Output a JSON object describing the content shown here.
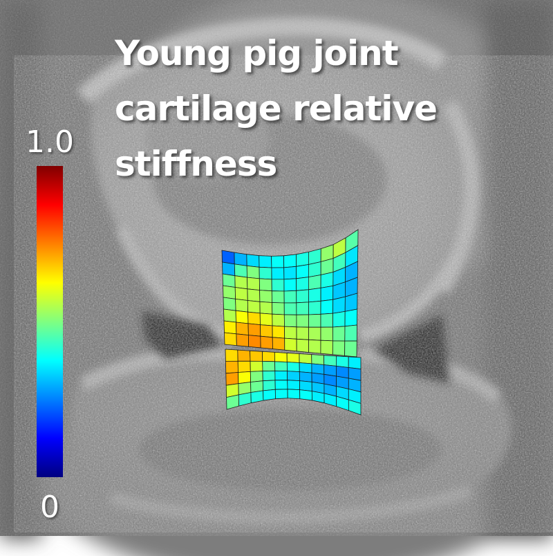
{
  "title_lines": [
    "Young pig joint",
    "cartilage relative",
    "stiffness"
  ],
  "colorbar": {
    "max_label": "1.0",
    "min_label": "0",
    "colors": [
      "#000080",
      "#0000ff",
      "#0080ff",
      "#00ffff",
      "#80ff80",
      "#ffff00",
      "#ff8000",
      "#ff0000",
      "#800000"
    ]
  },
  "upper_mesh_stiffness": [
    [
      0.22,
      0.3,
      0.34,
      0.36,
      0.38,
      0.38,
      0.4,
      0.42,
      0.52,
      0.56,
      0.46
    ],
    [
      0.3,
      0.45,
      0.5,
      0.42,
      0.36,
      0.35,
      0.38,
      0.42,
      0.48,
      0.44,
      0.35
    ],
    [
      0.48,
      0.55,
      0.55,
      0.5,
      0.42,
      0.38,
      0.4,
      0.45,
      0.4,
      0.34,
      0.3
    ],
    [
      0.52,
      0.56,
      0.55,
      0.52,
      0.48,
      0.44,
      0.42,
      0.4,
      0.36,
      0.32,
      0.3
    ],
    [
      0.5,
      0.55,
      0.56,
      0.55,
      0.5,
      0.45,
      0.44,
      0.42,
      0.38,
      0.34,
      0.32
    ],
    [
      0.55,
      0.62,
      0.66,
      0.6,
      0.56,
      0.5,
      0.5,
      0.48,
      0.45,
      0.4,
      0.38
    ],
    [
      0.64,
      0.7,
      0.72,
      0.68,
      0.65,
      0.56,
      0.55,
      0.54,
      0.52,
      0.48,
      0.45
    ],
    [
      0.66,
      0.72,
      0.74,
      0.72,
      0.7,
      0.58,
      0.56,
      0.55,
      0.54,
      0.5,
      0.48
    ]
  ],
  "lower_mesh_stiffness": [
    [
      0.66,
      0.7,
      0.68,
      0.66,
      0.62,
      0.6,
      0.56,
      0.5,
      0.44,
      0.4,
      0.36
    ],
    [
      0.7,
      0.66,
      0.58,
      0.48,
      0.44,
      0.4,
      0.34,
      0.3,
      0.28,
      0.26,
      0.28
    ],
    [
      0.72,
      0.62,
      0.5,
      0.42,
      0.36,
      0.33,
      0.3,
      0.28,
      0.26,
      0.28,
      0.3
    ],
    [
      0.58,
      0.52,
      0.48,
      0.42,
      0.38,
      0.36,
      0.34,
      0.32,
      0.3,
      0.34,
      0.36
    ],
    [
      0.48,
      0.42,
      0.4,
      0.38,
      0.38,
      0.38,
      0.38,
      0.36,
      0.36,
      0.38,
      0.4
    ]
  ]
}
